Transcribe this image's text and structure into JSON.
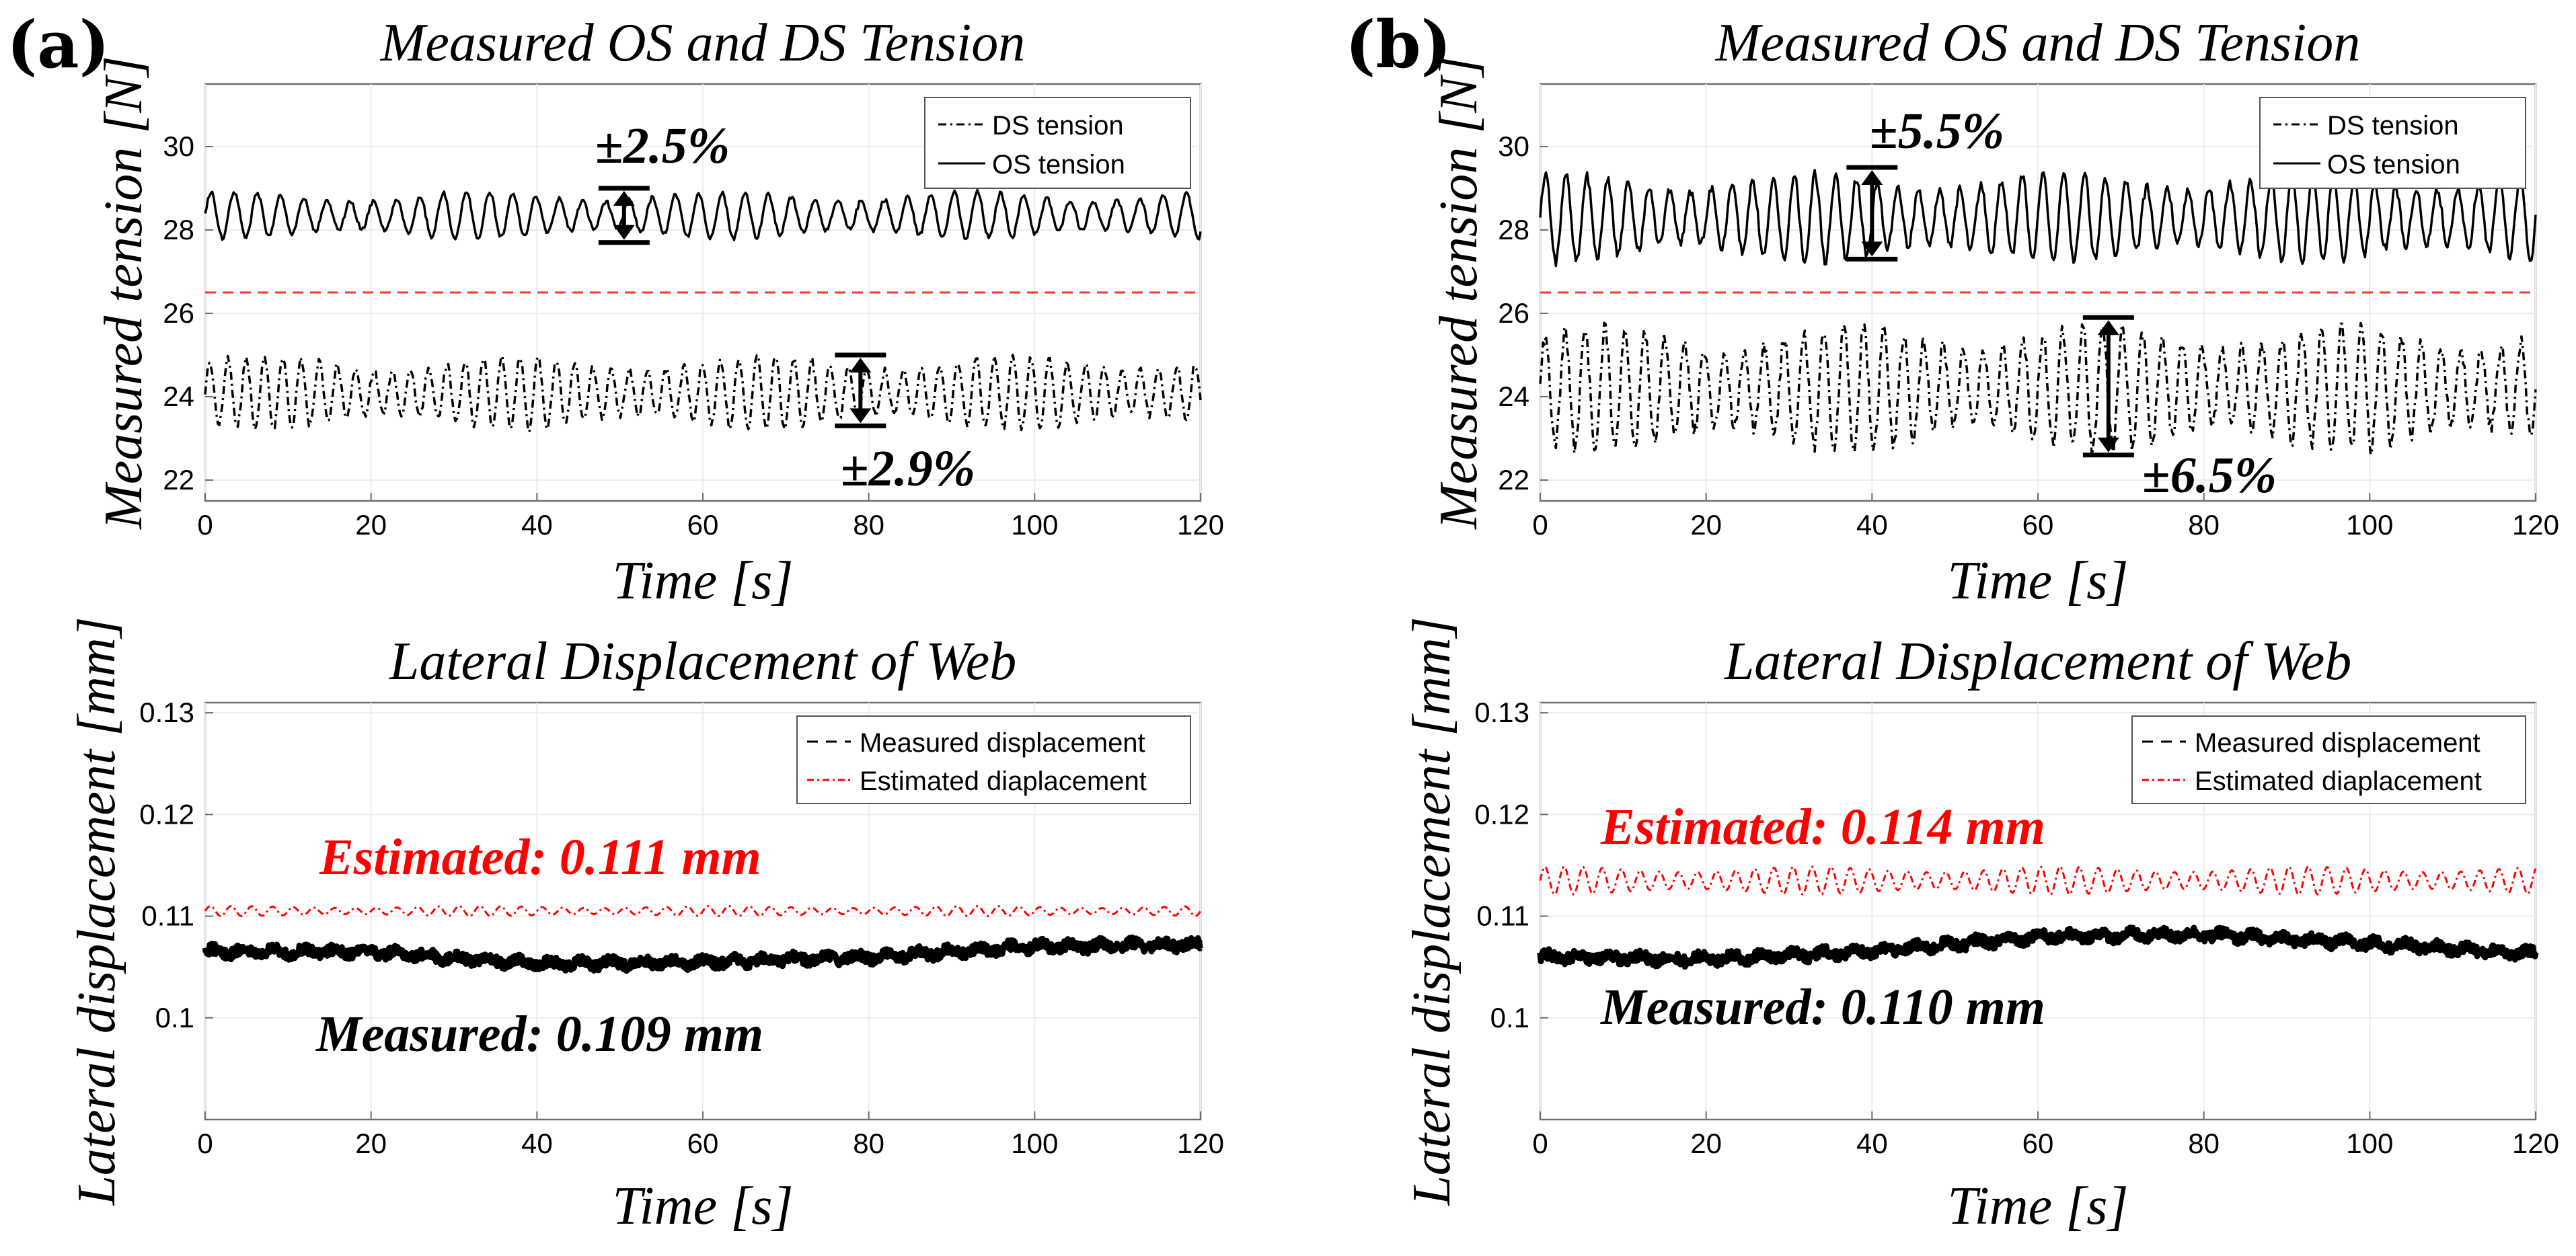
{
  "panels": [
    {
      "letter": "(a)",
      "tension": {
        "title": "Measured OS and DS Tension",
        "xlabel": "Time [s]",
        "ylabel": "Measured tension [N]",
        "legend": [
          "DS tension",
          "OS tension"
        ],
        "annotations": [
          "±2.5%",
          "±2.9%"
        ]
      },
      "displacement": {
        "title": "Lateral Displacement of Web",
        "xlabel": "Time [s]",
        "ylabel": "Lateral displacement [mm]",
        "legend": [
          "Measured displacement",
          "Estimated diaplacement"
        ],
        "annotations": [
          "Estimated: 0.111 mm",
          "Measured: 0.109 mm"
        ]
      }
    },
    {
      "letter": "(b)",
      "tension": {
        "title": "Measured OS and DS Tension",
        "xlabel": "Time [s]",
        "ylabel": "Measured tension [N]",
        "legend": [
          "DS tension",
          "OS tension"
        ],
        "annotations": [
          "±5.5%",
          "±6.5%"
        ]
      },
      "displacement": {
        "title": "Lateral Displacement of Web",
        "xlabel": "Time [s]",
        "ylabel": "Lateral displacement [mm]",
        "legend": [
          "Measured displacement",
          "Estimated diaplacement"
        ],
        "annotations": [
          "Estimated: 0.114 mm",
          "Measured: 0.110 mm"
        ]
      }
    }
  ],
  "colors": {
    "measured": "#000000",
    "estimated": "#ff0000",
    "reference": "#ff3333",
    "axis": "#6e6e6e",
    "grid": "#ececec"
  },
  "chart_data": [
    {
      "type": "line",
      "panel": "(a)",
      "title": "Measured OS and DS Tension",
      "xlabel": "Time [s]",
      "ylabel": "Measured tension [N]",
      "xlim": [
        0,
        120
      ],
      "ylim": [
        21.5,
        31.5
      ],
      "xticks": [
        0,
        20,
        40,
        60,
        80,
        100,
        120
      ],
      "yticks": [
        22,
        24,
        26,
        28,
        30
      ],
      "grid": true,
      "legend_position": "top-right",
      "reference_line": 26.5,
      "series": [
        {
          "name": "DS tension",
          "style": "dash-dot",
          "mean": 24.1,
          "amplitude": 0.7,
          "period_s": 2.2,
          "noise": 0.15
        },
        {
          "name": "OS tension",
          "style": "solid",
          "mean": 28.35,
          "amplitude": 0.45,
          "period_s": 2.8,
          "noise": 0.1
        }
      ],
      "annotations": [
        {
          "text": "±2.5%",
          "x": 50.5,
          "y_top": 29.0,
          "y_bottom": 27.7
        },
        {
          "text": "±2.9%",
          "x": 79,
          "y_top": 25.0,
          "y_bottom": 23.3
        }
      ]
    },
    {
      "type": "line",
      "panel": "(a)",
      "title": "Lateral Displacement of Web",
      "xlabel": "Time [s]",
      "ylabel": "Lateral displacement [mm]",
      "xlim": [
        0,
        120
      ],
      "ylim": [
        0.09,
        0.131
      ],
      "xticks": [
        0,
        20,
        40,
        60,
        80,
        100,
        120
      ],
      "yticks": [
        0.1,
        0.11,
        0.12,
        0.13
      ],
      "grid": true,
      "legend_position": "top-right",
      "series": [
        {
          "name": "Measured displacement",
          "style": "dashed",
          "points": [
            [
              0,
              0.1065
            ],
            [
              20,
              0.1065
            ],
            [
              40,
              0.1053
            ],
            [
              60,
              0.1055
            ],
            [
              80,
              0.106
            ],
            [
              100,
              0.107
            ],
            [
              120,
              0.1072
            ]
          ],
          "noise": 0.0005
        },
        {
          "name": "Estimated diaplacement",
          "style": "dash-dot",
          "mean": 0.1105,
          "amplitude": 0.0004,
          "period_s": 2.5
        }
      ],
      "annotations": [
        {
          "text": "Estimated: 0.111 mm",
          "color": "#ff0000"
        },
        {
          "text": "Measured: 0.109 mm",
          "color": "#000000"
        }
      ]
    },
    {
      "type": "line",
      "panel": "(b)",
      "title": "Measured OS and DS Tension",
      "xlabel": "Time [s]",
      "ylabel": "Measured tension [N]",
      "xlim": [
        0,
        120
      ],
      "ylim": [
        21.5,
        31.5
      ],
      "xticks": [
        0,
        20,
        40,
        60,
        80,
        100,
        120
      ],
      "yticks": [
        22,
        24,
        26,
        28,
        30
      ],
      "grid": true,
      "legend_position": "top-right",
      "reference_line": 26.5,
      "series": [
        {
          "name": "DS tension",
          "style": "dash-dot",
          "mean": 24.2,
          "amplitude": 1.2,
          "period_s": 2.4,
          "noise": 0.35
        },
        {
          "name": "OS tension",
          "style": "solid",
          "mean": 28.3,
          "amplitude": 0.85,
          "period_s": 2.5,
          "noise": 0.2
        }
      ],
      "annotations": [
        {
          "text": "±5.5%",
          "x": 40,
          "y_top": 29.5,
          "y_bottom": 27.3
        },
        {
          "text": "±6.5%",
          "x": 68.5,
          "y_top": 25.9,
          "y_bottom": 22.6
        }
      ]
    },
    {
      "type": "line",
      "panel": "(b)",
      "title": "Lateral Displacement of Web",
      "xlabel": "Time [s]",
      "ylabel": "Lateral displacement [mm]",
      "xlim": [
        0,
        120
      ],
      "ylim": [
        0.09,
        0.131
      ],
      "xticks": [
        0,
        20,
        40,
        60,
        80,
        100,
        120
      ],
      "yticks": [
        0.1,
        0.11,
        0.12,
        0.13
      ],
      "grid": true,
      "legend_position": "top-right",
      "series": [
        {
          "name": "Measured displacement",
          "style": "dashed",
          "points": [
            [
              0,
              0.106
            ],
            [
              20,
              0.1058
            ],
            [
              40,
              0.1065
            ],
            [
              60,
              0.108
            ],
            [
              80,
              0.1082
            ],
            [
              100,
              0.1073
            ],
            [
              120,
              0.1063
            ]
          ],
          "noise": 0.0005
        },
        {
          "name": "Estimated diaplacement",
          "style": "dash-dot",
          "mean": 0.1135,
          "amplitude": 0.0011,
          "period_s": 2.3
        }
      ],
      "annotations": [
        {
          "text": "Estimated: 0.114 mm",
          "color": "#ff0000"
        },
        {
          "text": "Measured: 0.110 mm",
          "color": "#000000"
        }
      ]
    }
  ]
}
